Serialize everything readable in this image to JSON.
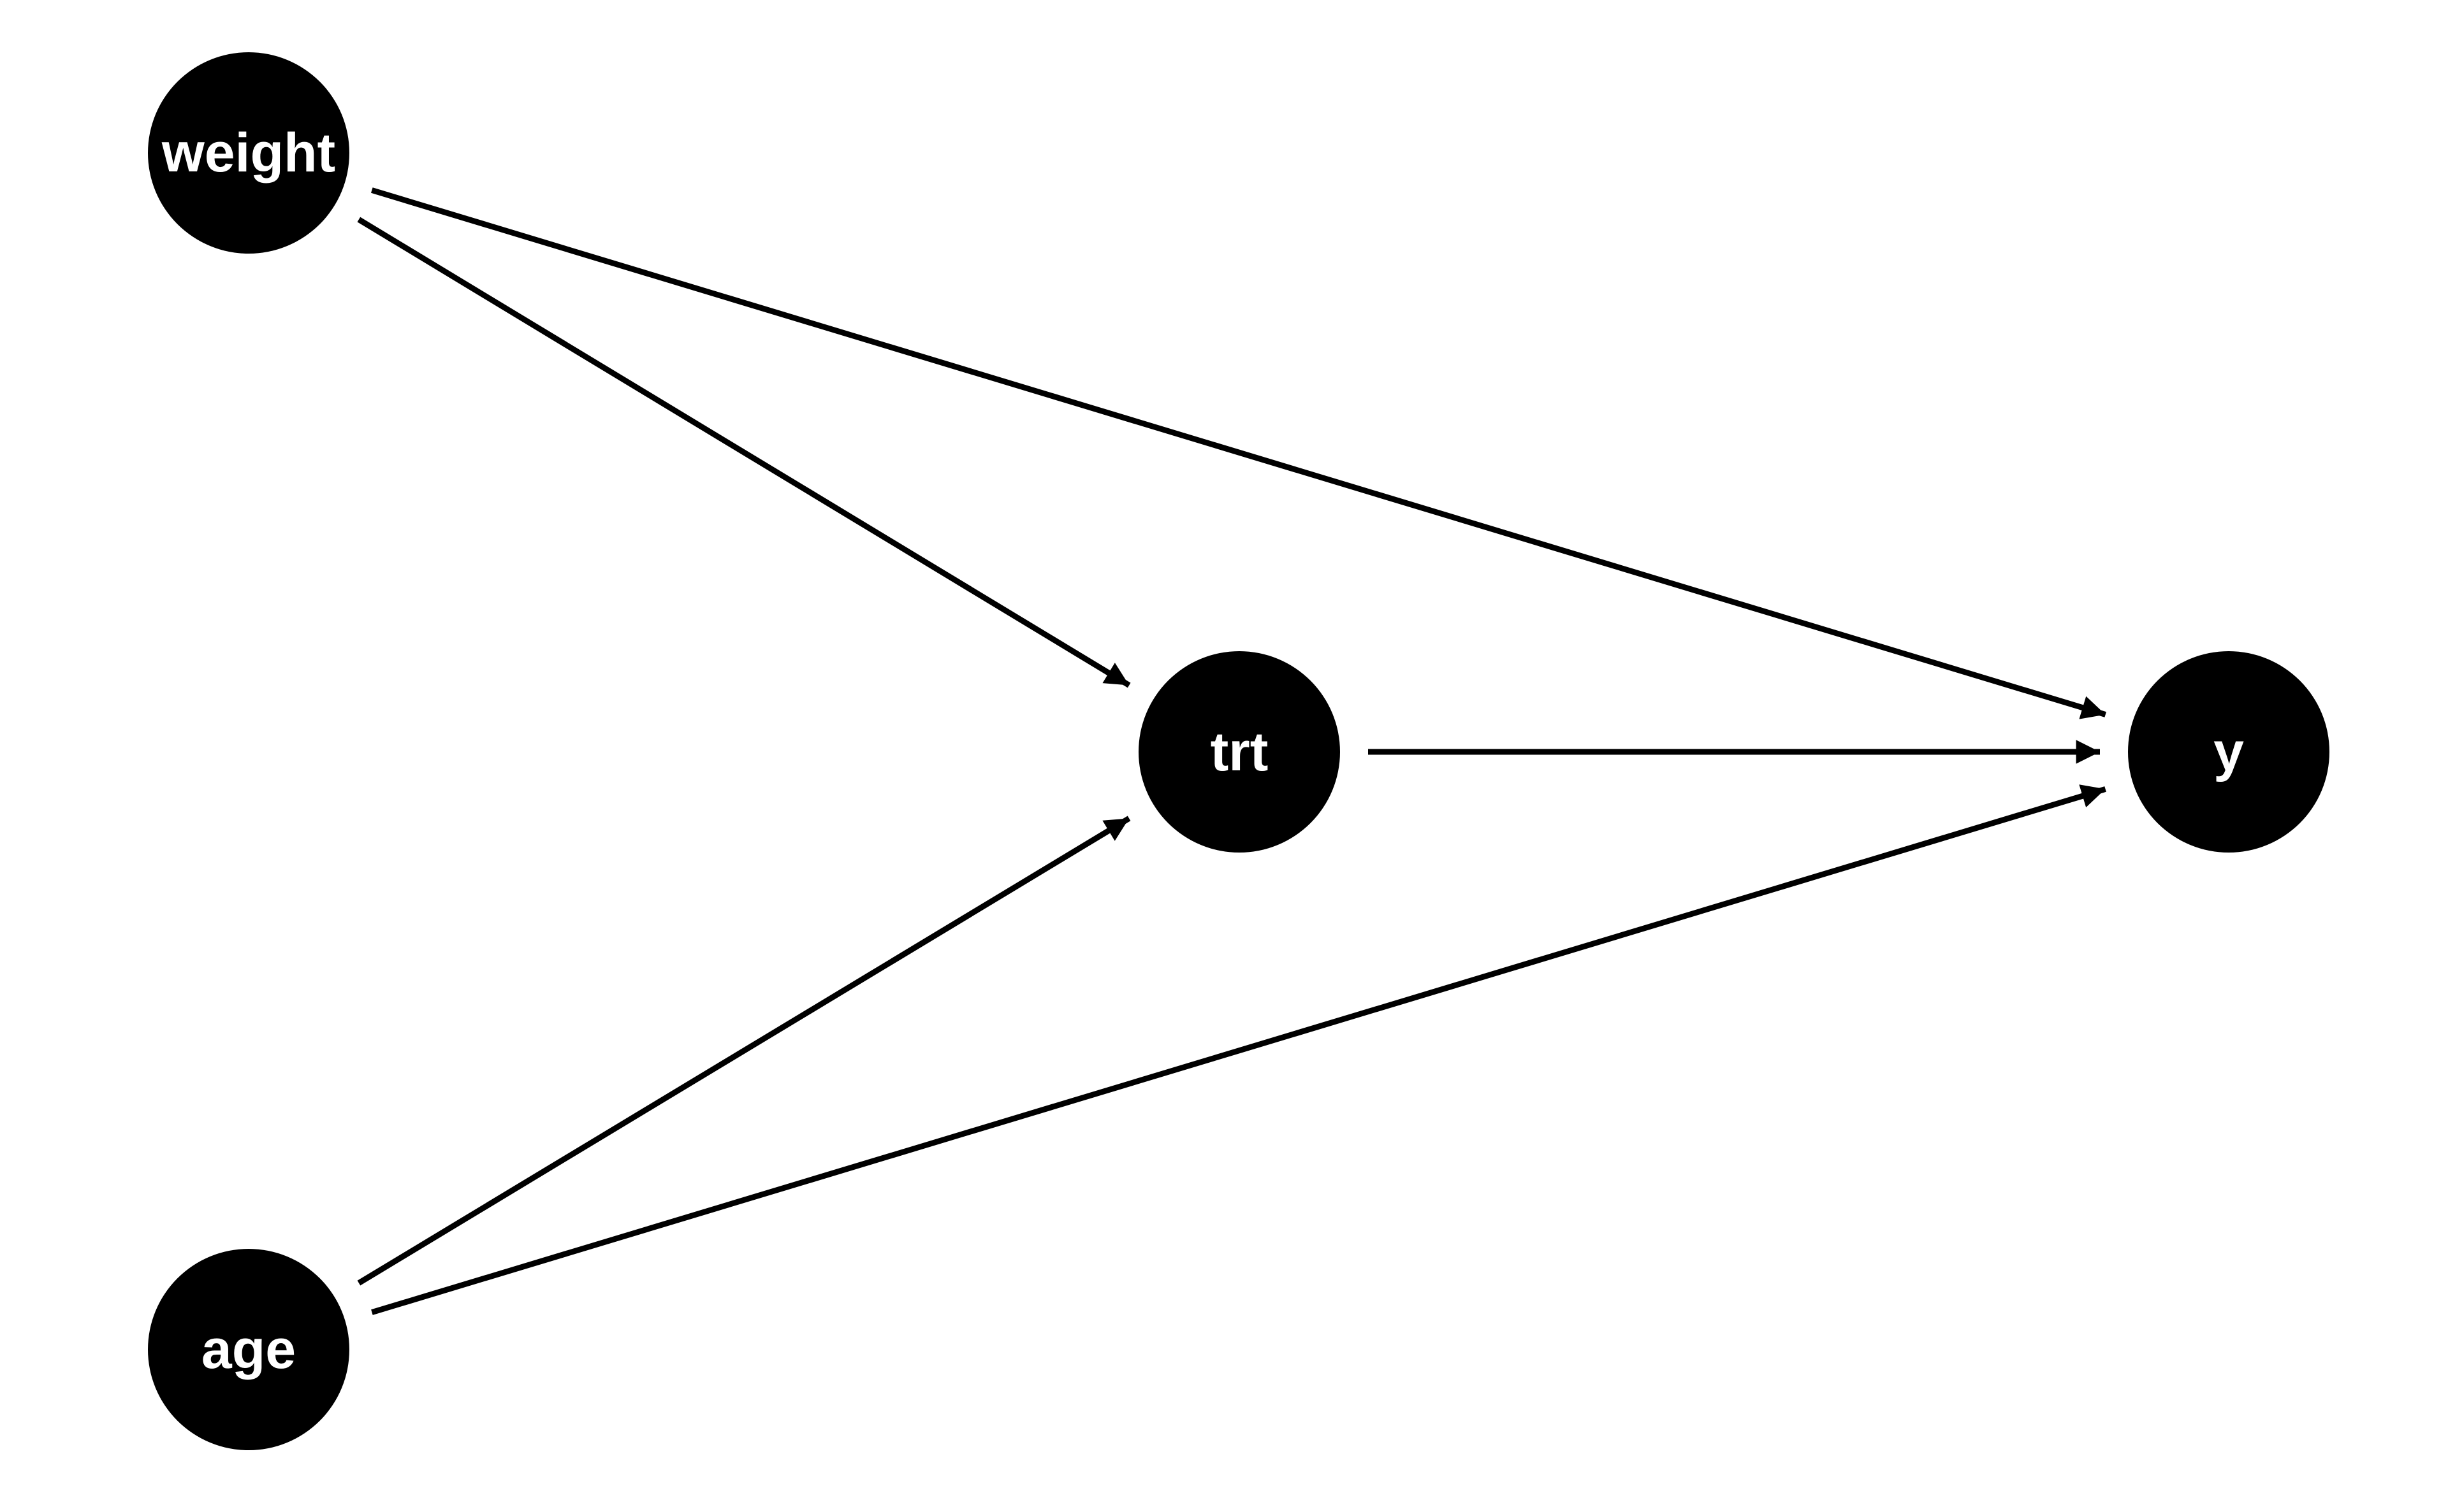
{
  "diagram": {
    "type": "directed-acyclic-graph",
    "colors": {
      "background": "#ffffff",
      "node_fill": "#000000",
      "node_text": "#ffffff",
      "edge": "#000000"
    },
    "nodes": [
      {
        "id": "weight",
        "label": "weight"
      },
      {
        "id": "trt",
        "label": "trt"
      },
      {
        "id": "y",
        "label": "y"
      },
      {
        "id": "age",
        "label": "age"
      }
    ],
    "edges": [
      {
        "from": "weight",
        "to": "trt"
      },
      {
        "from": "weight",
        "to": "y"
      },
      {
        "from": "trt",
        "to": "y"
      },
      {
        "from": "age",
        "to": "trt"
      },
      {
        "from": "age",
        "to": "y"
      }
    ]
  }
}
